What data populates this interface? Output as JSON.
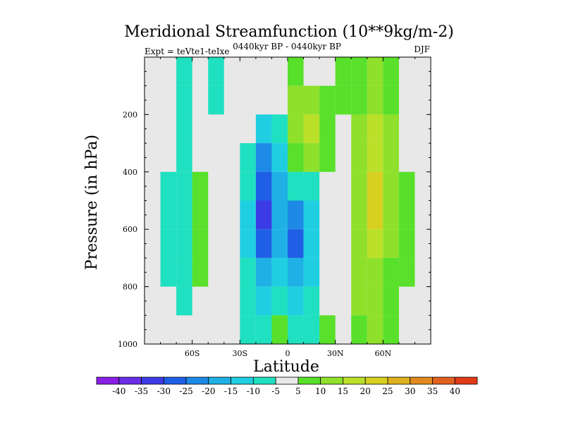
{
  "chart_data": {
    "type": "heatmap",
    "title": "Meridional Streamfunction (10**9kg/m-2)",
    "subtitle": "0440kyr BP - 0440kyr BP",
    "left_label": "Expt = teVte1-teIxe",
    "right_label": "DJF",
    "xlabel": "Latitude",
    "ylabel": "Pressure (in hPa)",
    "xlim": [
      -90,
      90
    ],
    "ylim": [
      1000,
      0
    ],
    "x_ticks": [
      {
        "value": -60,
        "label": "60S"
      },
      {
        "value": -30,
        "label": "30S"
      },
      {
        "value": 0,
        "label": "0"
      },
      {
        "value": 30,
        "label": "30N"
      },
      {
        "value": 60,
        "label": "60N"
      }
    ],
    "y_ticks": [
      {
        "value": 200,
        "label": "200"
      },
      {
        "value": 400,
        "label": "400"
      },
      {
        "value": 600,
        "label": "600"
      },
      {
        "value": 800,
        "label": "800"
      },
      {
        "value": 1000,
        "label": "1000"
      }
    ],
    "colorbar": {
      "levels": [
        -40,
        -35,
        -30,
        -25,
        -20,
        -15,
        -10,
        -5,
        5,
        10,
        15,
        20,
        25,
        30,
        35,
        40
      ],
      "colors": [
        "#8a1ee6",
        "#6a2ee6",
        "#3c3ce6",
        "#1f5fe6",
        "#1c8ae6",
        "#1fb1e6",
        "#1fcfe1",
        "#1fe0c0",
        "#e8e8e8",
        "#58e02a",
        "#8ee02a",
        "#bbe02a",
        "#d8d020",
        "#e0b020",
        "#e08a20",
        "#e06020",
        "#e03a18"
      ]
    },
    "cells": {
      "x": [
        -75,
        -65,
        -55,
        -45,
        -35,
        -25,
        -15,
        -5,
        5,
        15,
        25,
        35,
        45,
        55,
        65,
        75,
        85
      ],
      "p": [
        50,
        150,
        250,
        350,
        450,
        550,
        650,
        750,
        850,
        950
      ],
      "z": [
        [
          0,
          -6,
          0,
          -6,
          0,
          0,
          0,
          0,
          6,
          0,
          0,
          6,
          8,
          10,
          6,
          0,
          0
        ],
        [
          0,
          -6,
          0,
          -6,
          0,
          0,
          0,
          0,
          10,
          12,
          8,
          6,
          8,
          12,
          8,
          0,
          0
        ],
        [
          0,
          -6,
          0,
          0,
          0,
          0,
          -14,
          -7,
          14,
          16,
          8,
          0,
          10,
          18,
          10,
          0,
          0
        ],
        [
          0,
          -6,
          0,
          0,
          0,
          -8,
          -22,
          -12,
          8,
          10,
          6,
          0,
          12,
          18,
          10,
          0,
          0
        ],
        [
          -6,
          -6,
          6,
          0,
          0,
          -10,
          -30,
          -16,
          -10,
          -6,
          0,
          0,
          12,
          20,
          12,
          6,
          0
        ],
        [
          -6,
          -6,
          8,
          0,
          0,
          -12,
          -34,
          -18,
          -24,
          -14,
          0,
          0,
          12,
          22,
          12,
          6,
          0
        ],
        [
          -6,
          -6,
          8,
          0,
          0,
          -12,
          -28,
          -16,
          -26,
          -14,
          0,
          0,
          12,
          18,
          10,
          6,
          0
        ],
        [
          -6,
          -6,
          6,
          0,
          0,
          -10,
          -20,
          -12,
          -18,
          -12,
          0,
          0,
          12,
          14,
          8,
          6,
          0
        ],
        [
          0,
          -6,
          0,
          0,
          0,
          -8,
          -14,
          -8,
          -12,
          -8,
          0,
          0,
          10,
          12,
          6,
          0,
          0
        ],
        [
          0,
          0,
          0,
          0,
          0,
          -7,
          -10,
          6,
          -8,
          -6,
          6,
          0,
          8,
          10,
          6,
          0,
          0
        ]
      ]
    }
  }
}
